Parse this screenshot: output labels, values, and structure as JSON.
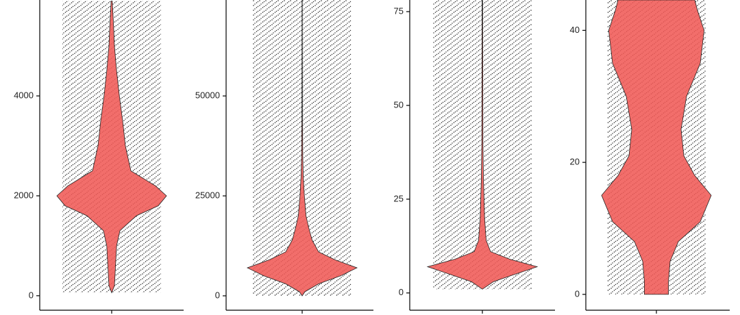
{
  "chart_data": [
    {
      "type": "violin",
      "color": "#f05a57",
      "ylim": [
        -290,
        5920
      ],
      "yticks": [
        0,
        2000,
        4000
      ],
      "y": [
        60,
        200,
        600,
        1000,
        1300,
        1600,
        1800,
        2000,
        2200,
        2500,
        3000,
        3500,
        4000,
        4500,
        5000,
        5500,
        5900
      ],
      "density": [
        0,
        0.05,
        0.07,
        0.09,
        0.15,
        0.45,
        0.85,
        1,
        0.8,
        0.35,
        0.25,
        0.2,
        0.14,
        0.09,
        0.05,
        0.03,
        0.01
      ]
    },
    {
      "type": "violin",
      "color": "#f05a57",
      "ylim": [
        -3600,
        74000
      ],
      "yticks": [
        0,
        25000,
        50000
      ],
      "y": [
        0,
        1000,
        3000,
        5000,
        7000,
        9000,
        11000,
        14000,
        17000,
        20000,
        25000,
        30000,
        35000,
        45000,
        74000
      ],
      "density": [
        0,
        0.05,
        0.3,
        0.7,
        1,
        0.6,
        0.3,
        0.18,
        0.12,
        0.07,
        0.04,
        0.02,
        0.01,
        0.005,
        0.003
      ]
    },
    {
      "type": "violin",
      "color": "#f05a57",
      "ylim": [
        -4.6,
        78.1
      ],
      "yticks": [
        0,
        25,
        50,
        75
      ],
      "y": [
        1,
        3,
        5,
        7,
        9,
        11,
        14,
        20,
        25,
        30,
        40,
        78
      ],
      "density": [
        0,
        0.2,
        0.6,
        1,
        0.5,
        0.15,
        0.07,
        0.04,
        0.03,
        0.02,
        0.01,
        0.005
      ]
    },
    {
      "type": "violin",
      "color": "#f05a57",
      "ylim": [
        -2.4,
        44.6
      ],
      "yticks": [
        0,
        20,
        40
      ],
      "y": [
        0,
        2,
        5,
        8,
        11,
        15,
        18,
        21,
        25,
        30,
        35,
        40,
        43,
        44.6
      ],
      "density": [
        0.22,
        0.22,
        0.25,
        0.4,
        0.8,
        1,
        0.7,
        0.5,
        0.45,
        0.55,
        0.8,
        0.87,
        0.75,
        0.7
      ]
    }
  ]
}
